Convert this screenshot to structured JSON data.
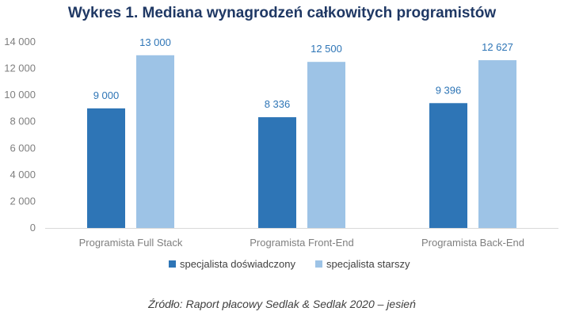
{
  "chart_data": {
    "type": "bar",
    "title": "Wykres 1. Mediana wynagrodzeń całkowitych programistów",
    "categories": [
      "Programista Full Stack",
      "Programista Front-End",
      "Programista Back-End"
    ],
    "series": [
      {
        "name": "specjalista doświadczony",
        "values": [
          9000,
          8336,
          9396
        ],
        "labels": [
          "9 000",
          "8 336",
          "9 396"
        ],
        "color": "#2e75b6"
      },
      {
        "name": "specjalista starszy",
        "values": [
          13000,
          12500,
          12627
        ],
        "labels": [
          "13 000",
          "12 500",
          "12 627"
        ],
        "color": "#9dc3e6"
      }
    ],
    "ylim": [
      0,
      14000
    ],
    "yticks": [
      0,
      2000,
      4000,
      6000,
      8000,
      10000,
      12000,
      14000
    ],
    "ytick_labels": [
      "0",
      "2 000",
      "4 000",
      "6 000",
      "8 000",
      "10 000",
      "12 000",
      "14 000"
    ],
    "grid": false,
    "legend_position": "bottom",
    "source": "Źródło: Raport płacowy Sedlak & Sedlak 2020 – jesień"
  }
}
